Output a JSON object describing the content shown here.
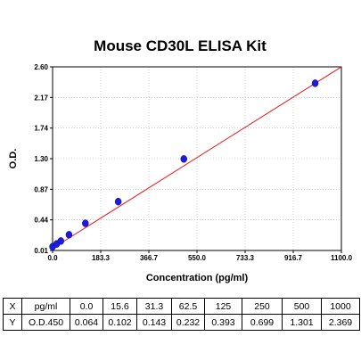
{
  "chart_data": {
    "type": "scatter",
    "title": "Mouse CD30L ELISA Kit",
    "xlabel": "Concentration (pg/ml)",
    "ylabel": "O.D.",
    "xlim": [
      0,
      1100
    ],
    "ylim": [
      0.01,
      2.6
    ],
    "x_ticks": [
      "0.0",
      "183.3",
      "366.7",
      "550.0",
      "733.3",
      "916.7",
      "1100.0"
    ],
    "y_ticks": [
      "0.01",
      "0.44",
      "0.87",
      "1.30",
      "1.74",
      "2.17",
      "2.60"
    ],
    "grid": true,
    "points": {
      "x": [
        0,
        15.6,
        31.3,
        62.5,
        125,
        250,
        500,
        1000
      ],
      "y": [
        0.064,
        0.102,
        0.143,
        0.232,
        0.393,
        0.699,
        1.301,
        2.369
      ]
    },
    "fit_line": {
      "x": [
        0,
        1100
      ],
      "y": [
        0.04,
        2.6
      ]
    },
    "colors": {
      "points": "#1c1ce0",
      "fit": "#e8181c",
      "grid": "#b4b4b4"
    }
  },
  "table": {
    "rows": [
      [
        "X",
        "pg/ml",
        "0.0",
        "15.6",
        "31.3",
        "62.5",
        "125",
        "250",
        "500",
        "1000"
      ],
      [
        "Y",
        "O.D.450",
        "0.064",
        "0.102",
        "0.143",
        "0.232",
        "0.393",
        "0.699",
        "1.301",
        "2.369"
      ]
    ]
  }
}
